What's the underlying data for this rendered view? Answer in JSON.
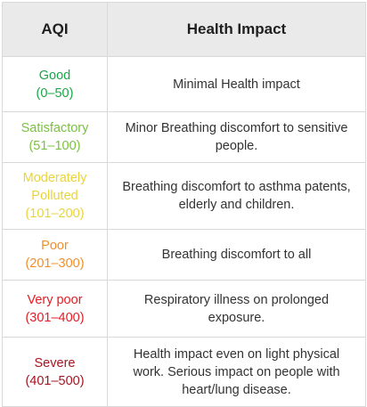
{
  "table": {
    "headers": {
      "aqi": "AQI",
      "impact": "Health Impact"
    },
    "rows": [
      {
        "name_lines": [
          "Good"
        ],
        "range": "(0–50)",
        "color": "#1aa548",
        "impact": "Minimal Health impact"
      },
      {
        "name_lines": [
          "Satisfactory"
        ],
        "range": "(51–100)",
        "color": "#7cc142",
        "impact": "Minor Breathing discomfort to sensitive people."
      },
      {
        "name_lines": [
          "Moderately",
          "Polluted"
        ],
        "range": "(101–200)",
        "color": "#e8d53c",
        "impact": "Breathing discomfort to asthma patents, elderly and children."
      },
      {
        "name_lines": [
          "Poor"
        ],
        "range": "(201–300)",
        "color": "#f0902a",
        "impact": "Breathing discomfort to all"
      },
      {
        "name_lines": [
          "Very poor"
        ],
        "range": "(301–400)",
        "color": "#e21d24",
        "impact": "Respiratory illness on prolonged exposure."
      },
      {
        "name_lines": [
          "Severe"
        ],
        "range": "(401–500)",
        "color": "#a31522",
        "impact": "Health impact even on light physical work. Serious impact on people with heart/lung disease."
      }
    ]
  }
}
